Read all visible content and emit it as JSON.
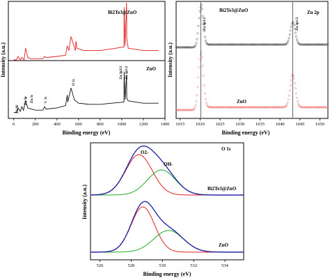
{
  "chart_data": [
    {
      "id": "survey",
      "type": "line",
      "xlabel": "Binding energy (eV)",
      "ylabel": "Intensity (a.u.)",
      "xlim": [
        -50,
        1400
      ],
      "xticks": [
        "0",
        "200",
        "400",
        "600",
        "800",
        "1000",
        "1200",
        "1400"
      ],
      "xtick_values": [
        0,
        200,
        400,
        600,
        800,
        1000,
        1200,
        1400
      ],
      "series": [
        {
          "name": "Bi2Te3@ZnO",
          "color": "#e02020",
          "x": [
            0,
            25,
            40,
            60,
            75,
            95,
            110,
            130,
            160,
            200,
            270,
            285,
            300,
            400,
            480,
            495,
            510,
            530,
            570,
            576,
            585,
            650,
            800,
            1020,
            1022,
            1030,
            1044,
            1046,
            1060,
            1200,
            1340
          ],
          "y": [
            0.5,
            0.5,
            0.53,
            0.5,
            0.52,
            0.5,
            0.6,
            0.52,
            0.51,
            0.51,
            0.51,
            0.53,
            0.52,
            0.53,
            0.54,
            0.62,
            0.58,
            0.7,
            0.58,
            0.66,
            0.6,
            0.58,
            0.58,
            0.61,
            0.95,
            0.62,
            0.99,
            0.68,
            0.6,
            0.58,
            0.58
          ]
        },
        {
          "name": "ZnO",
          "color": "#111111",
          "x": [
            0,
            25,
            40,
            60,
            75,
            90,
            110,
            130,
            200,
            270,
            285,
            300,
            400,
            480,
            495,
            500,
            530,
            560,
            600,
            700,
            800,
            1020,
            1022,
            1030,
            1044,
            1046,
            1060,
            1200,
            1340
          ],
          "y": [
            0.05,
            0.05,
            0.09,
            0.06,
            0.1,
            0.07,
            0.15,
            0.09,
            0.07,
            0.07,
            0.1,
            0.08,
            0.09,
            0.11,
            0.2,
            0.14,
            0.26,
            0.16,
            0.13,
            0.12,
            0.12,
            0.14,
            0.4,
            0.16,
            0.37,
            0.17,
            0.15,
            0.13,
            0.13
          ]
        }
      ],
      "annotations": [
        "Bi2Te3@ZnO",
        "ZnO",
        "Zn M",
        "Zn 3p",
        "Zn 3s",
        "C 1s",
        "O 1s",
        "Zn 2p3/2",
        "Zn 2p1/2"
      ]
    },
    {
      "id": "zn2p",
      "type": "scatter",
      "xlabel": "Binding energy (eV)",
      "ylabel": "Intensity (a.u.)",
      "xlim": [
        1014,
        1052
      ],
      "xticks": [
        "1015",
        "1020",
        "1025",
        "1030",
        "1035",
        "1040",
        "1045",
        "1050"
      ],
      "xtick_values": [
        1015,
        1020,
        1025,
        1030,
        1035,
        1040,
        1045,
        1050
      ],
      "title": "Zn 2p",
      "series": [
        {
          "name": "Bi2Te3@ZnO",
          "color": "#555555"
        },
        {
          "name": "ZnO",
          "color": "#f08080"
        }
      ],
      "peaks": [
        {
          "label": "Zn 2p3/2",
          "x": 1020.2
        },
        {
          "label": "Zn 2p1/2",
          "x": 1043.2
        }
      ]
    },
    {
      "id": "o1s",
      "type": "line",
      "xlabel": "Binding energy (eV)",
      "ylabel": "Intensity (a.u.)",
      "xlim": [
        525.4,
        535.2
      ],
      "xticks": [
        "526",
        "528",
        "530",
        "532",
        "534"
      ],
      "xtick_values": [
        526,
        528,
        530,
        532,
        534
      ],
      "title": "O 1s",
      "components": [
        {
          "sample": "Bi2Te3@ZnO",
          "label": "O2-",
          "center": 528.5,
          "width": 0.85,
          "height": 1.0,
          "color": "#e02020"
        },
        {
          "sample": "Bi2Te3@ZnO",
          "label": "OH-",
          "center": 529.95,
          "width": 0.9,
          "height": 0.62,
          "color": "#22aa22"
        },
        {
          "sample": "ZnO",
          "label": "O2-",
          "center": 528.75,
          "width": 0.75,
          "height": 1.0,
          "color": "#e02020"
        },
        {
          "sample": "ZnO",
          "label": "OH-",
          "center": 530.4,
          "width": 0.95,
          "height": 0.48,
          "color": "#22aa22"
        }
      ],
      "annotations": [
        "O2-",
        "OH-",
        "Bi2Te3@ZnO",
        "ZnO"
      ]
    }
  ],
  "labels": {
    "survey_sample_top": "Bi2Te3@ZnO",
    "survey_sample_bottom": "ZnO",
    "zn_m": "Zn M",
    "zn_3p": "Zn 3p",
    "zn_3s": "Zn 3s",
    "c_1s": "C 1s",
    "o_1s": "O 1s",
    "zn2p32": "Zn 2p3/2",
    "zn2p12": "Zn 2p1/2",
    "zn2p_title": "Zn 2p",
    "zn2p_sample_top": "Bi2Te3@ZnO",
    "zn2p_sample_bottom": "ZnO",
    "o1s_title": "O 1s",
    "o2_label": "O2-",
    "oh_label": "OH-",
    "o1s_sample_top": "Bi2Te3@ZnO",
    "o1s_sample_bottom": "ZnO",
    "xlabel": "Binding energy (eV)",
    "ylabel": "Intensity (a.u.)"
  }
}
